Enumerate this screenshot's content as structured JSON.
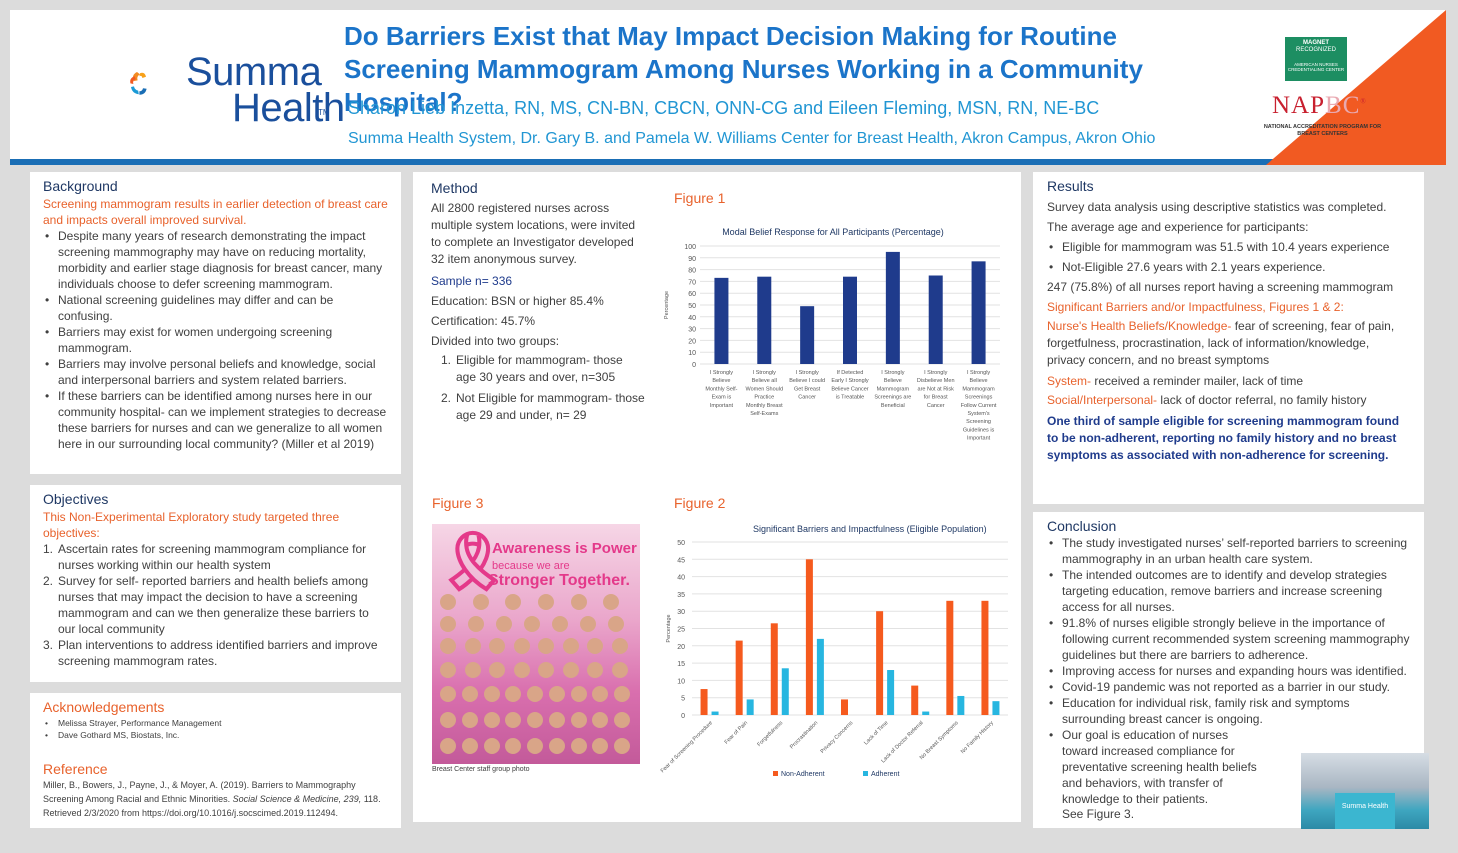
{
  "header": {
    "title": "Do Barriers Exist that May Impact Decision Making for Routine Screening Mammogram Among Nurses Working in a Community Hospital?",
    "authors": "Sharon Lieb Inzetta, RN, MS, CN-BN, CBCN, ONN-CG and Eileen Fleming, MSN, RN, NE-BC",
    "affiliation": "Summa Health System, Dr. Gary B. and Pamela W. Williams Center for Breast Health, Akron Campus, Akron Ohio",
    "logo_line1": "Summa",
    "logo_line2": "Health",
    "logo_tm": "TM",
    "magnet_lines": [
      "MAGNET",
      "RECOGNIZED",
      "AMERICAN NURSES",
      "CREDENTIALING CENTER"
    ],
    "napbc_main": "NAP",
    "napbc_bc": "BC",
    "napbc_reg": "®",
    "napbc_sub": "NATIONAL ACCREDITATION PROGRAM FOR BREAST CENTERS"
  },
  "background": {
    "heading": "Background",
    "lead": "Screening mammogram results in earlier detection of breast care and impacts overall improved survival.",
    "bullets": [
      "Despite many years of research demonstrating the impact screening mammography may have on reducing mortality, morbidity and earlier stage diagnosis for breast cancer, many individuals choose to defer screening mammogram.",
      "National screening guidelines may differ and can be confusing.",
      "Barriers may exist for women undergoing screening mammogram.",
      "Barriers may involve personal beliefs and knowledge, social and interpersonal barriers and system related barriers.",
      "If these barriers can be identified among nurses here in our community hospital- can we implement strategies to decrease these barriers for nurses and can we generalize to all women here in our surrounding local community? (Miller et al 2019)"
    ]
  },
  "objectives": {
    "heading": "Objectives",
    "lead": "This Non-Experimental Exploratory study targeted three objectives:",
    "items": [
      "Ascertain rates for screening mammogram compliance for nurses working within our health system",
      "Survey for self- reported barriers and health beliefs among nurses that may impact the decision to have a screening mammogram and can we then generalize these barriers to our local community",
      "Plan interventions to address identified barriers and improve screening mammogram rates."
    ]
  },
  "acknowledgements": {
    "heading": "Acknowledgements",
    "items": [
      "Melissa Strayer, Performance Management",
      "Dave Gothard MS, Biostats, Inc."
    ]
  },
  "reference": {
    "heading": "Reference",
    "text_part1": "Miller, B., Bowers, J., Payne, J., & Moyer, A. (2019). Barriers to Mammography Screening Among Racial and Ethnic Minorities.",
    "journal": "Social Science & Medicine, 239,",
    "text_part2": "118. Retrieved 2/3/2020 from https://doi.org/10.1016/j.socscimed.2019.112494."
  },
  "method": {
    "heading": "Method",
    "intro": "All 2800 registered nurses across multiple system locations, were invited to complete an Investigator developed 32 item anonymous survey.",
    "sample": "Sample n= 336",
    "education": "Education: BSN or higher 85.4%",
    "certification": "Certification: 45.7%",
    "divided": "Divided into two groups:",
    "groups": [
      "Eligible for mammogram- those age 30 years and over, n=305",
      "Not Eligible for mammogram- those age 29 and under, n= 29"
    ]
  },
  "figure1_label": "Figure 1",
  "figure2_label": "Figure 2",
  "figure3": {
    "label": "Figure 3",
    "caption": "Breast Center staff group photo",
    "text1": "Awareness is Power",
    "text2": "because we are",
    "text3": "Stronger Together."
  },
  "results": {
    "heading": "Results",
    "line1": "Survey data analysis using descriptive statistics was completed.",
    "line2": "The average age and experience for participants:",
    "bullets": [
      "Eligible for mammogram was 51.5 with 10.4 years experience",
      "Not-Eligible 27.6 years with 2.1 years experience."
    ],
    "line3": "247 (75.8%) of all nurses report having a screening mammogram",
    "sig": "Significant Barriers and/or Impactfulness, Figures 1 & 2:",
    "health_label": "Nurse's Health Beliefs/Knowledge-",
    "health_text": " fear of screening, fear of pain, forgetfulness, procrastination, lack of information/knowledge, privacy concern, and no breast symptoms",
    "system_label": "System-",
    "system_text": " received a reminder mailer, lack of time",
    "social_label": "Social/Interpersonal-",
    "social_text": " lack of doctor referral, no family history",
    "conclusion_bold": "One third of sample eligible for screening mammogram found to be non-adherent, reporting no family history and no breast symptoms as associated with non-adherence for screening."
  },
  "conclusion": {
    "heading": "Conclusion",
    "bullets": [
      "The study investigated nurses’ self-reported barriers to screening mammography in an urban health care system.",
      "The intended outcomes are to identify and develop strategies targeting education, remove barriers and increase screening access for all nurses.",
      "91.8% of nurses eligible strongly believe in the importance of following current recommended system screening mammography guidelines but there are barriers to adherence.",
      "Improving access for nurses and expanding hours was identified.",
      "Covid-19 pandemic was not reported as a barrier in our study.",
      "Education for individual risk, family risk and symptoms surrounding breast cancer is ongoing.",
      "Our goal is education of nurses toward increased compliance for preventative screening health beliefs and behaviors, with transfer of knowledge to their patients."
    ],
    "see": "See Figure 3.",
    "booth_text": "Summa Health"
  },
  "chart_data": [
    {
      "type": "bar",
      "title": "Modal Belief Response for All Participants (Percentage)",
      "ylabel": "Percentage",
      "ylim": [
        0,
        100
      ],
      "yticks": [
        0,
        10,
        20,
        30,
        40,
        50,
        60,
        70,
        80,
        90,
        100
      ],
      "categories": [
        [
          "I Strongly",
          "Believe",
          "Monthly Self-",
          "Exam is",
          "Important"
        ],
        [
          "I Strongly",
          "Believe all",
          "Women Should",
          "Practice",
          "Monthly Breast",
          "Self-Exams"
        ],
        [
          "I Strongly",
          "Believe I could",
          "Get Breast",
          "Cancer"
        ],
        [
          "If Detected",
          "Early I Strongly",
          "Believe Cancer",
          "is Treatable"
        ],
        [
          "I Strongly",
          "Believe",
          "Mammogram",
          "Screenings are",
          "Beneficial"
        ],
        [
          "I Strongly",
          "Disbelieve Men",
          "are Not at Risk",
          "for Breast",
          "Cancer"
        ],
        [
          "I Strongly",
          "Believe",
          "Mammogram",
          "Screenings",
          "Follow Current",
          "System's",
          "Screening",
          "Guidelines is",
          "Important"
        ]
      ],
      "values": [
        73,
        74,
        49,
        74,
        95,
        75,
        87
      ],
      "colors": {
        "bar": "#1f3b8c"
      },
      "grid": true
    },
    {
      "type": "bar",
      "title": "Significant Barriers and Impactfulness (Eligible Population)",
      "ylabel": "Percentage",
      "ylim": [
        0,
        50
      ],
      "yticks": [
        0,
        5,
        10,
        15,
        20,
        25,
        30,
        35,
        40,
        45,
        50
      ],
      "categories": [
        "Fear of Screening Procedure",
        "Fear of Pain",
        "Forgetfulness",
        "Procrastination",
        "Privacy Concerns",
        "Lack of Time",
        "Lack of Doctor Referral",
        "No Breast Symptoms",
        "No Family History"
      ],
      "series": [
        {
          "name": "Non-Adherent",
          "values": [
            7.5,
            21.5,
            26.5,
            45,
            4.5,
            30,
            8.5,
            33,
            33
          ],
          "color": "#f55a1e"
        },
        {
          "name": "Adherent",
          "values": [
            1,
            4.5,
            13.5,
            22,
            0,
            13,
            1,
            5.5,
            4
          ],
          "color": "#27b6e0"
        }
      ],
      "legend": "bottom",
      "grid": true
    }
  ]
}
